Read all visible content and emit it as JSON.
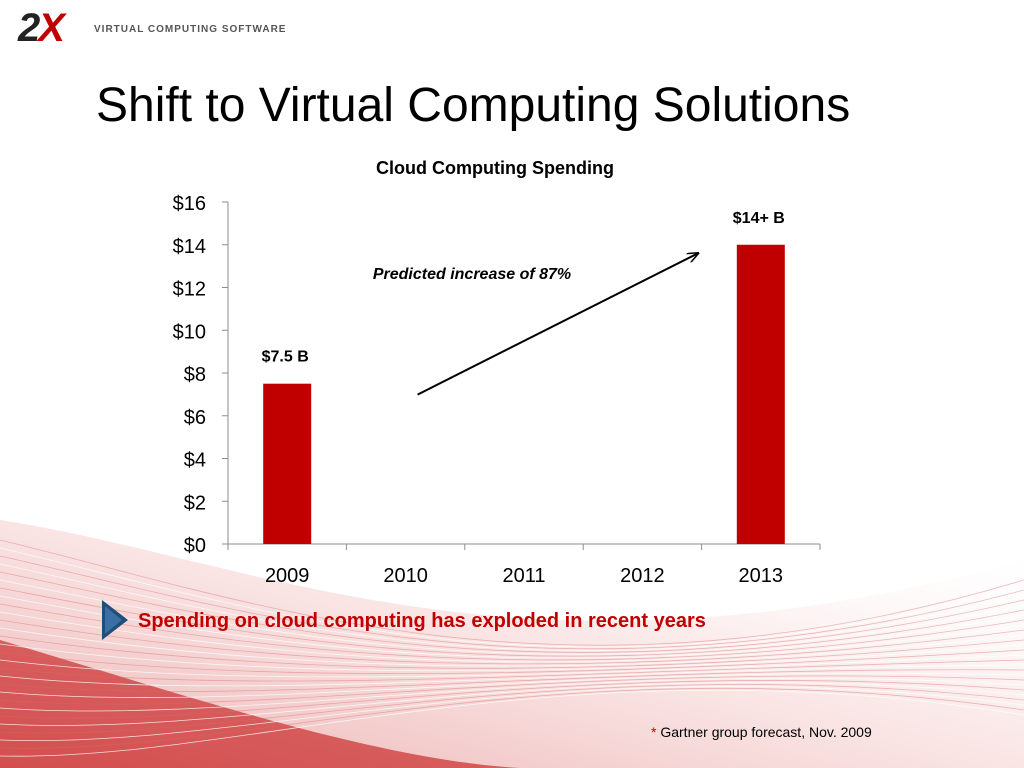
{
  "header": {
    "logo_mark_prefix": "2",
    "logo_mark_suffix": "X",
    "logo_text": "VIRTUAL COMPUTING SOFTWARE"
  },
  "slide": {
    "title": "Shift to Virtual Computing Solutions",
    "bullet": "Spending on cloud computing has exploded in recent years",
    "footnote_star": "*",
    "footnote": " Gartner group forecast, Nov. 2009"
  },
  "colors": {
    "accent": "#c00000",
    "bar": "#c00000",
    "bullet_arrow": "#1f4e79",
    "axis": "#8c8c8c"
  },
  "chart_data": {
    "type": "bar",
    "title": "Cloud Computing Spending",
    "categories": [
      "2009",
      "2010",
      "2011",
      "2012",
      "2013"
    ],
    "values": [
      7.5,
      null,
      null,
      null,
      14
    ],
    "data_labels": [
      "$7.5 B",
      "",
      "",
      "",
      "$14+ B"
    ],
    "yticks": [
      "$0",
      "$2",
      "$4",
      "$6",
      "$8",
      "$10",
      "$12",
      "$14",
      "$16"
    ],
    "ylim": [
      0,
      16
    ],
    "xlabel": "",
    "ylabel": "",
    "grid": false,
    "legend": "none",
    "annotation": {
      "text": "Predicted increase of 87%",
      "arrow_from": {
        "x": "2010",
        "y": 8.3
      },
      "arrow_to": {
        "x": "2012",
        "y": 13.4
      }
    }
  }
}
